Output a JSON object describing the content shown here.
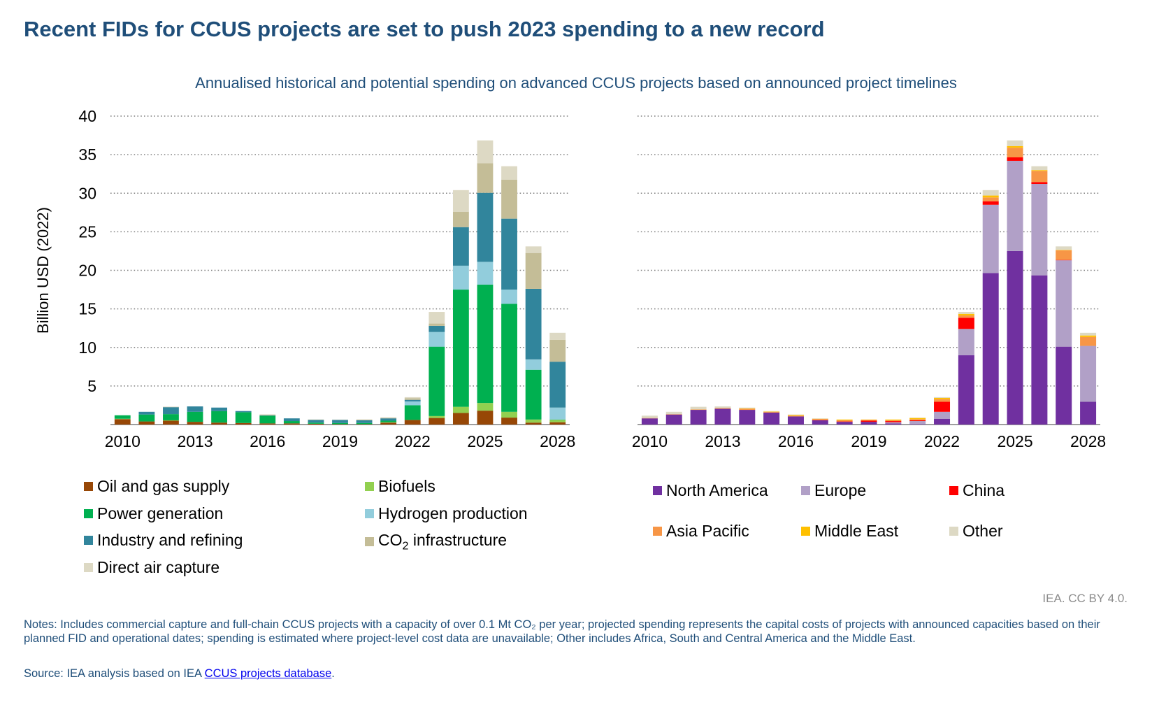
{
  "title": "Recent FIDs for CCUS projects are set to push 2023 spending to a new record",
  "subtitle": "Annualised historical and potential spending on advanced CCUS projects based on announced project timelines",
  "credit": "IEA. CC BY 4.0.",
  "notes": "Notes: Includes commercial capture and full-chain CCUS projects with a capacity of over 0.1 Mt CO₂ per year; projected spending represents the capital costs of projects with announced capacities based on their planned FID and operational dates; spending is estimated where project-level cost data are unavailable; Other includes Africa, South and Central America and the Middle East.",
  "source": {
    "prefix": "Source: IEA analysis based on IEA ",
    "link": "CCUS projects database",
    "suffix": "."
  },
  "chart_data": [
    {
      "type": "bar",
      "stacked": true,
      "title": "By sector",
      "ylabel": "Billion USD (2022)",
      "xlabel": "",
      "ylim": [
        0,
        40
      ],
      "yticks": [
        5,
        10,
        15,
        20,
        25,
        30,
        35,
        40
      ],
      "categories": [
        "2010",
        "2011",
        "2012",
        "2013",
        "2014",
        "2015",
        "2016",
        "2017",
        "2018",
        "2019",
        "2020",
        "2021",
        "2022",
        "2023",
        "2024",
        "2025",
        "2026",
        "2027",
        "2028"
      ],
      "xtick_labels": [
        "2010",
        "2013",
        "2016",
        "2019",
        "2022",
        "2025",
        "2028"
      ],
      "grid": true,
      "legend_position": "bottom",
      "series": [
        {
          "name": "Oil and gas supply",
          "color": "#974706",
          "values": [
            0.7,
            0.4,
            0.5,
            0.35,
            0.25,
            0.2,
            0.15,
            0.15,
            0.1,
            0.05,
            0.05,
            0.25,
            0.6,
            0.85,
            1.5,
            1.8,
            0.9,
            0.25,
            0.3
          ]
        },
        {
          "name": "Biofuels",
          "color": "#92d050",
          "values": [
            0.05,
            0,
            0.05,
            0,
            0,
            0,
            0,
            0,
            0,
            0,
            0,
            0.05,
            0,
            0.25,
            0.8,
            1.0,
            0.75,
            0.4,
            0.3
          ]
        },
        {
          "name": "Power generation",
          "color": "#00b050",
          "values": [
            0.45,
            0.9,
            0.8,
            1.3,
            1.5,
            1.4,
            1.0,
            0.3,
            0.15,
            0.15,
            0.15,
            0.2,
            1.9,
            9.0,
            15.2,
            15.35,
            14.0,
            6.45,
            0.05
          ]
        },
        {
          "name": "Hydrogen production",
          "color": "#92cddc",
          "values": [
            0,
            0,
            0,
            0,
            0,
            0,
            0,
            0,
            0,
            0,
            0,
            0,
            0.5,
            1.9,
            3.1,
            2.95,
            1.85,
            1.35,
            1.55
          ]
        },
        {
          "name": "Industry and refining",
          "color": "#31859c",
          "values": [
            0,
            0.35,
            0.9,
            0.7,
            0.45,
            0.15,
            0.05,
            0.35,
            0.35,
            0.4,
            0.35,
            0.3,
            0.2,
            0.8,
            5.0,
            8.95,
            9.2,
            9.15,
            5.95
          ]
        },
        {
          "name": "CO2 infrastructure",
          "color": "#c4bd97",
          "values": [
            0,
            0,
            0.05,
            0,
            0,
            0,
            0.1,
            0,
            0.05,
            0,
            0.1,
            0.1,
            0.2,
            0.3,
            2.0,
            3.85,
            5.05,
            4.65,
            2.85
          ]
        },
        {
          "name": "Direct air capture",
          "color": "#ddd9c4",
          "values": [
            0,
            0,
            0,
            0,
            0,
            0,
            0,
            0,
            0,
            0.05,
            0,
            0,
            0.15,
            1.5,
            2.8,
            2.95,
            1.75,
            0.85,
            0.9
          ]
        }
      ]
    },
    {
      "type": "bar",
      "stacked": true,
      "title": "By region",
      "ylabel": "",
      "xlabel": "",
      "ylim": [
        0,
        40
      ],
      "categories": [
        "2010",
        "2011",
        "2012",
        "2013",
        "2014",
        "2015",
        "2016",
        "2017",
        "2018",
        "2019",
        "2020",
        "2021",
        "2022",
        "2023",
        "2024",
        "2025",
        "2026",
        "2027",
        "2028"
      ],
      "xtick_labels": [
        "2010",
        "2013",
        "2016",
        "2019",
        "2022",
        "2025",
        "2028"
      ],
      "grid": true,
      "legend_position": "bottom",
      "series": [
        {
          "name": "North America",
          "color": "#7030a0",
          "values": [
            0.8,
            1.3,
            1.9,
            2.05,
            1.9,
            1.55,
            1.05,
            0.55,
            0.35,
            0.35,
            0.15,
            0.05,
            0.75,
            9.0,
            19.65,
            22.5,
            19.35,
            10.1,
            2.95
          ]
        },
        {
          "name": "Europe",
          "color": "#b1a0c7",
          "values": [
            0,
            0,
            0,
            0,
            0,
            0,
            0,
            0,
            0,
            0,
            0.15,
            0.4,
            0.9,
            3.4,
            8.85,
            11.7,
            11.85,
            11.2,
            7.25
          ]
        },
        {
          "name": "China",
          "color": "#ff0000",
          "values": [
            0,
            0,
            0,
            0,
            0,
            0,
            0,
            0.05,
            0.05,
            0.15,
            0.15,
            0.1,
            1.3,
            1.45,
            0.45,
            0.45,
            0.25,
            0.05,
            0
          ]
        },
        {
          "name": "Asia Pacific",
          "color": "#f79646",
          "values": [
            0.05,
            0.05,
            0.05,
            0.1,
            0.15,
            0.1,
            0.1,
            0.1,
            0.15,
            0.1,
            0.1,
            0.15,
            0.35,
            0.3,
            0.5,
            1.25,
            1.45,
            1.25,
            1.15
          ]
        },
        {
          "name": "Middle East",
          "color": "#ffc000",
          "values": [
            0,
            0,
            0,
            0,
            0.05,
            0.05,
            0.1,
            0.05,
            0.1,
            0.05,
            0.1,
            0.15,
            0.15,
            0.2,
            0.25,
            0.2,
            0.1,
            0.05,
            0.2
          ]
        },
        {
          "name": "Other",
          "color": "#ddd9c4",
          "values": [
            0.3,
            0.3,
            0.35,
            0.2,
            0.1,
            0.05,
            0.05,
            0.05,
            0,
            0,
            0,
            0.05,
            0.1,
            0.25,
            0.7,
            0.75,
            0.5,
            0.45,
            0.35
          ]
        }
      ]
    }
  ],
  "legend_left": [
    "Oil and gas supply",
    "Biofuels",
    "Power generation",
    "Hydrogen production",
    "Industry and refining",
    "CO",
    "Direct air capture"
  ],
  "legend_co2": {
    "main": "CO",
    "sub": "2",
    "rest": " infrastructure"
  }
}
